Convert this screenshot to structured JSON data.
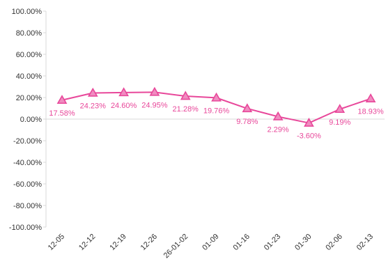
{
  "chart_data": {
    "type": "line",
    "title": "",
    "xlabel": "",
    "ylabel": "",
    "categories": [
      "12-05",
      "12-12",
      "12-19",
      "12-26",
      "26-01-02",
      "01-09",
      "01-16",
      "01-23",
      "01-30",
      "02-06",
      "02-13"
    ],
    "series": [
      {
        "values": [
          17.58,
          24.23,
          24.6,
          24.95,
          21.28,
          19.76,
          9.78,
          2.29,
          -3.6,
          9.19,
          18.93
        ],
        "data_labels": [
          "17.58%",
          "24.23%",
          "24.60%",
          "24.95%",
          "21.28%",
          "19.76%",
          "9.78%",
          "2.29%",
          "-3.60%",
          "9.19%",
          "18.93%"
        ],
        "color": "#e8479a",
        "marker_fill": "#f08cc0",
        "marker": "triangle"
      }
    ],
    "ylim": [
      -100,
      100
    ],
    "y_ticks": [
      100,
      80,
      60,
      40,
      20,
      0,
      -20,
      -40,
      -60,
      -80,
      -100
    ],
    "y_tick_labels": [
      "100.00%",
      "80.00%",
      "60.00%",
      "40.00%",
      "20.00%",
      "0.00%",
      "-20.00%",
      "-40.00%",
      "-60.00%",
      "-80.00%",
      "-100.00%"
    ],
    "grid": false,
    "legend": "none",
    "axis_color": "#d9d9d9",
    "label_color": "#e8479a"
  }
}
